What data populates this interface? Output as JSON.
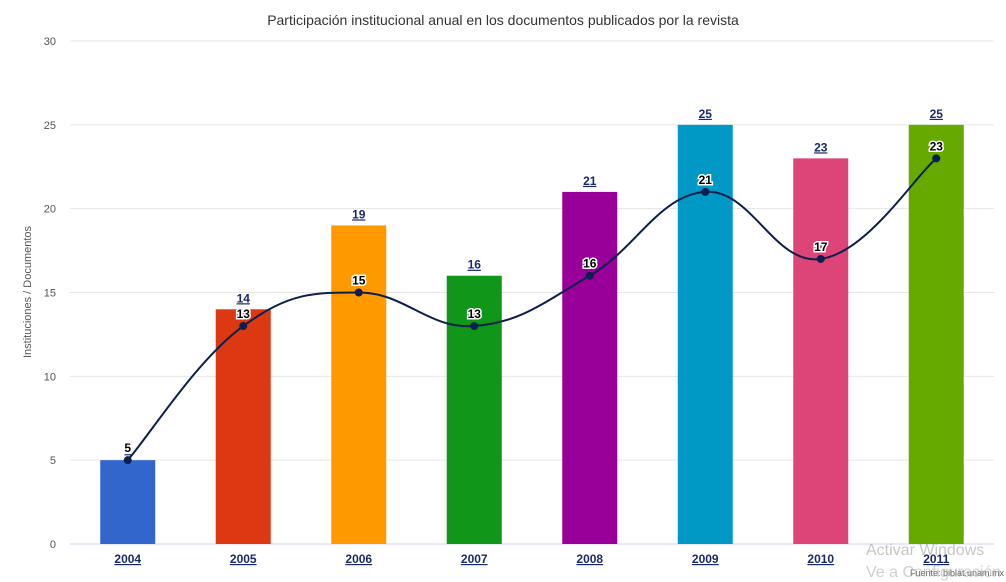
{
  "chart_data": {
    "type": "bar",
    "title": "Participación institucional anual en los documentos publicados por la revista",
    "ylabel": "Instituciones / Documentos",
    "xlabel": "",
    "categories": [
      "2004",
      "2005",
      "2006",
      "2007",
      "2008",
      "2009",
      "2010",
      "2011"
    ],
    "ylim": [
      0,
      30
    ],
    "yticks": [
      0,
      5,
      10,
      15,
      20,
      25,
      30
    ],
    "grid": true,
    "series": [
      {
        "type": "bar",
        "values": [
          5,
          14,
          19,
          16,
          21,
          25,
          23,
          25
        ],
        "colors": [
          "#3366cc",
          "#dc3912",
          "#ff9900",
          "#109618",
          "#990099",
          "#0099c6",
          "#dd4477",
          "#66aa00"
        ]
      },
      {
        "type": "line",
        "values": [
          5,
          13,
          15,
          13,
          16,
          21,
          17,
          23
        ],
        "color": "#0d1f4f"
      }
    ]
  },
  "source": "Fuente: biblat.unam.mx",
  "watermark": "Activar Windows",
  "watermark_sub": "Ve a Configuración pa"
}
